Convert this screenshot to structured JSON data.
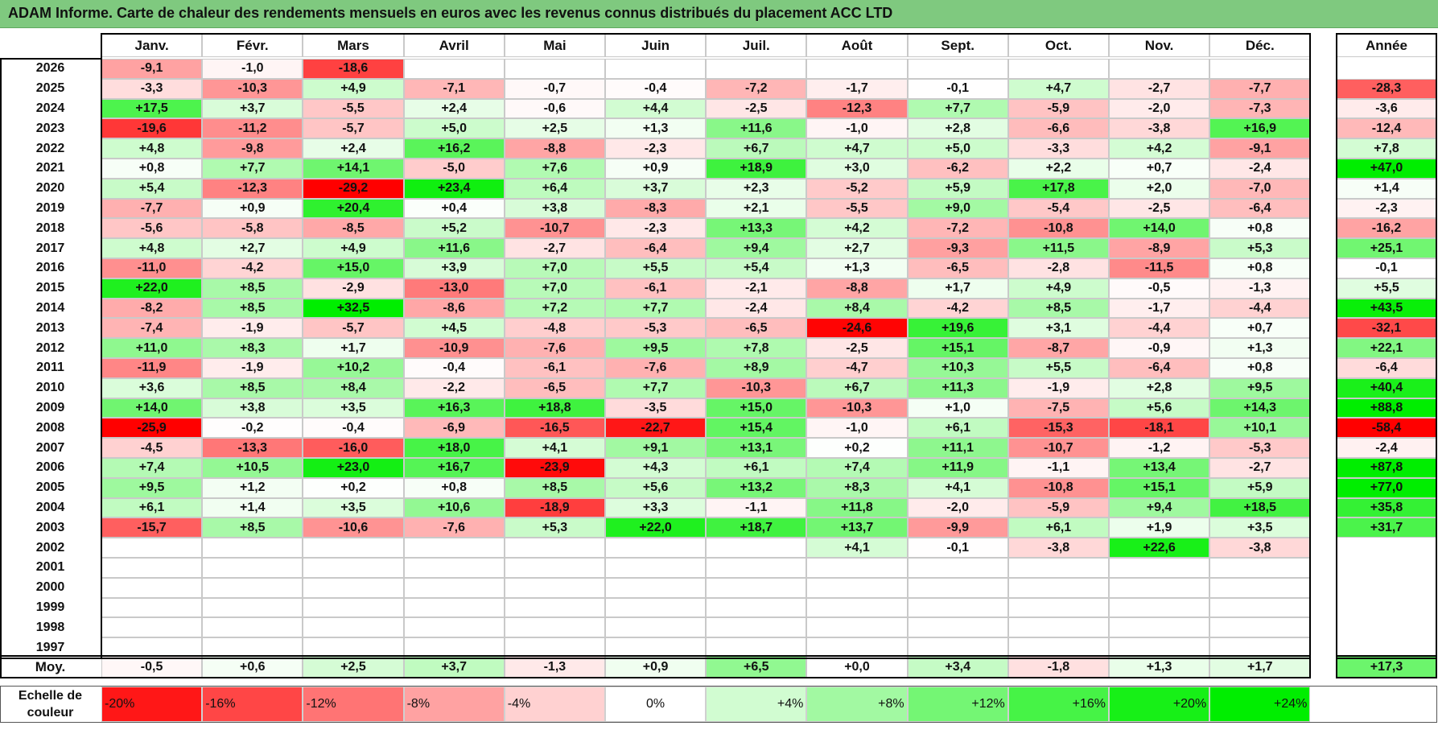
{
  "title": "ADAM Informe. Carte de chaleur des rendements mensuels en euros avec les revenus connus distribués du placement ACC LTD",
  "colors": {
    "title_bg": "#7fc97f",
    "negative_max": "#ff0000",
    "positive_max": "#00ee00",
    "neutral": "#ffffff"
  },
  "chart_data": {
    "type": "heatmap",
    "title": "ADAM Informe. Carte de chaleur des rendements mensuels en euros avec les revenus connus distribués du placement ACC LTD",
    "columns": [
      "Janv.",
      "Févr.",
      "Mars",
      "Avril",
      "Mai",
      "Juin",
      "Juil.",
      "Août",
      "Sept.",
      "Oct.",
      "Nov.",
      "Déc."
    ],
    "annual_header": "Année",
    "rows": [
      {
        "year": "2026",
        "values": [
          "-9,1",
          "-1,0",
          "-18,6",
          "",
          "",
          "",
          "",
          "",
          "",
          "",
          "",
          ""
        ],
        "annual": ""
      },
      {
        "year": "2025",
        "values": [
          "-3,3",
          "-10,3",
          "+4,9",
          "-7,1",
          "-0,7",
          "-0,4",
          "-7,2",
          "-1,7",
          "-0,1",
          "+4,7",
          "-2,7",
          "-7,7"
        ],
        "annual": "-28,3"
      },
      {
        "year": "2024",
        "values": [
          "+17,5",
          "+3,7",
          "-5,5",
          "+2,4",
          "-0,6",
          "+4,4",
          "-2,5",
          "-12,3",
          "+7,7",
          "-5,9",
          "-2,0",
          "-7,3"
        ],
        "annual": "-3,6"
      },
      {
        "year": "2023",
        "values": [
          "-19,6",
          "-11,2",
          "-5,7",
          "+5,0",
          "+2,5",
          "+1,3",
          "+11,6",
          "-1,0",
          "+2,8",
          "-6,6",
          "-3,8",
          "+16,9"
        ],
        "annual": "-12,4"
      },
      {
        "year": "2022",
        "values": [
          "+4,8",
          "-9,8",
          "+2,4",
          "+16,2",
          "-8,8",
          "-2,3",
          "+6,7",
          "+4,7",
          "+5,0",
          "-3,3",
          "+4,2",
          "-9,1"
        ],
        "annual": "+7,8"
      },
      {
        "year": "2021",
        "values": [
          "+0,8",
          "+7,7",
          "+14,1",
          "-5,0",
          "+7,6",
          "+0,9",
          "+18,9",
          "+3,0",
          "-6,2",
          "+2,2",
          "+0,7",
          "-2,4"
        ],
        "annual": "+47,0"
      },
      {
        "year": "2020",
        "values": [
          "+5,4",
          "-12,3",
          "-29,2",
          "+23,4",
          "+6,4",
          "+3,7",
          "+2,3",
          "-5,2",
          "+5,9",
          "+17,8",
          "+2,0",
          "-7,0"
        ],
        "annual": "+1,4"
      },
      {
        "year": "2019",
        "values": [
          "-7,7",
          "+0,9",
          "+20,4",
          "+0,4",
          "+3,8",
          "-8,3",
          "+2,1",
          "-5,5",
          "+9,0",
          "-5,4",
          "-2,5",
          "-6,4"
        ],
        "annual": "-2,3"
      },
      {
        "year": "2018",
        "values": [
          "-5,6",
          "-5,8",
          "-8,5",
          "+5,2",
          "-10,7",
          "-2,3",
          "+13,3",
          "+4,2",
          "-7,2",
          "-10,8",
          "+14,0",
          "+0,8"
        ],
        "annual": "-16,2"
      },
      {
        "year": "2017",
        "values": [
          "+4,8",
          "+2,7",
          "+4,9",
          "+11,6",
          "-2,7",
          "-6,4",
          "+9,4",
          "+2,7",
          "-9,3",
          "+11,5",
          "-8,9",
          "+5,3"
        ],
        "annual": "+25,1"
      },
      {
        "year": "2016",
        "values": [
          "-11,0",
          "-4,2",
          "+15,0",
          "+3,9",
          "+7,0",
          "+5,5",
          "+5,4",
          "+1,3",
          "-6,5",
          "-2,8",
          "-11,5",
          "+0,8"
        ],
        "annual": "-0,1"
      },
      {
        "year": "2015",
        "values": [
          "+22,0",
          "+8,5",
          "-2,9",
          "-13,0",
          "+7,0",
          "-6,1",
          "-2,1",
          "-8,8",
          "+1,7",
          "+4,9",
          "-0,5",
          "-1,3"
        ],
        "annual": "+5,5"
      },
      {
        "year": "2014",
        "values": [
          "-8,2",
          "+8,5",
          "+32,5",
          "-8,6",
          "+7,2",
          "+7,7",
          "-2,4",
          "+8,4",
          "-4,2",
          "+8,5",
          "-1,7",
          "-4,4"
        ],
        "annual": "+43,5"
      },
      {
        "year": "2013",
        "values": [
          "-7,4",
          "-1,9",
          "-5,7",
          "+4,5",
          "-4,8",
          "-5,3",
          "-6,5",
          "-24,6",
          "+19,6",
          "+3,1",
          "-4,4",
          "+0,7"
        ],
        "annual": "-32,1"
      },
      {
        "year": "2012",
        "values": [
          "+11,0",
          "+8,3",
          "+1,7",
          "-10,9",
          "-7,6",
          "+9,5",
          "+7,8",
          "-2,5",
          "+15,1",
          "-8,7",
          "-0,9",
          "+1,3"
        ],
        "annual": "+22,1"
      },
      {
        "year": "2011",
        "values": [
          "-11,9",
          "-1,9",
          "+10,2",
          "-0,4",
          "-6,1",
          "-7,6",
          "+8,9",
          "-4,7",
          "+10,3",
          "+5,5",
          "-6,4",
          "+0,8"
        ],
        "annual": "-6,4"
      },
      {
        "year": "2010",
        "values": [
          "+3,6",
          "+8,5",
          "+8,4",
          "-2,2",
          "-6,5",
          "+7,7",
          "-10,3",
          "+6,7",
          "+11,3",
          "-1,9",
          "+2,8",
          "+9,5"
        ],
        "annual": "+40,4"
      },
      {
        "year": "2009",
        "values": [
          "+14,0",
          "+3,8",
          "+3,5",
          "+16,3",
          "+18,8",
          "-3,5",
          "+15,0",
          "-10,3",
          "+1,0",
          "-7,5",
          "+5,6",
          "+14,3"
        ],
        "annual": "+88,8"
      },
      {
        "year": "2008",
        "values": [
          "-25,9",
          "-0,2",
          "-0,4",
          "-6,9",
          "-16,5",
          "-22,7",
          "+15,4",
          "-1,0",
          "+6,1",
          "-15,3",
          "-18,1",
          "+10,1"
        ],
        "annual": "-58,4"
      },
      {
        "year": "2007",
        "values": [
          "-4,5",
          "-13,3",
          "-16,0",
          "+18,0",
          "+4,1",
          "+9,1",
          "+13,1",
          "+0,2",
          "+11,1",
          "-10,7",
          "-1,2",
          "-5,3"
        ],
        "annual": "-2,4"
      },
      {
        "year": "2006",
        "values": [
          "+7,4",
          "+10,5",
          "+23,0",
          "+16,7",
          "-23,9",
          "+4,3",
          "+6,1",
          "+7,4",
          "+11,9",
          "-1,1",
          "+13,4",
          "-2,7"
        ],
        "annual": "+87,8"
      },
      {
        "year": "2005",
        "values": [
          "+9,5",
          "+1,2",
          "+0,2",
          "+0,8",
          "+8,5",
          "+5,6",
          "+13,2",
          "+8,3",
          "+4,1",
          "-10,8",
          "+15,1",
          "+5,9"
        ],
        "annual": "+77,0"
      },
      {
        "year": "2004",
        "values": [
          "+6,1",
          "+1,4",
          "+3,5",
          "+10,6",
          "-18,9",
          "+3,3",
          "-1,1",
          "+11,8",
          "-2,0",
          "-5,9",
          "+9,4",
          "+18,5"
        ],
        "annual": "+35,8"
      },
      {
        "year": "2003",
        "values": [
          "-15,7",
          "+8,5",
          "-10,6",
          "-7,6",
          "+5,3",
          "+22,0",
          "+18,7",
          "+13,7",
          "-9,9",
          "+6,1",
          "+1,9",
          "+3,5"
        ],
        "annual": "+31,7"
      },
      {
        "year": "2002",
        "values": [
          "",
          "",
          "",
          "",
          "",
          "",
          "",
          "+4,1",
          "-0,1",
          "-3,8",
          "+22,6",
          "-3,8"
        ],
        "annual": ""
      },
      {
        "year": "2001",
        "values": [
          "",
          "",
          "",
          "",
          "",
          "",
          "",
          "",
          "",
          "",
          "",
          ""
        ],
        "annual": ""
      },
      {
        "year": "2000",
        "values": [
          "",
          "",
          "",
          "",
          "",
          "",
          "",
          "",
          "",
          "",
          "",
          ""
        ],
        "annual": ""
      },
      {
        "year": "1999",
        "values": [
          "",
          "",
          "",
          "",
          "",
          "",
          "",
          "",
          "",
          "",
          "",
          ""
        ],
        "annual": ""
      },
      {
        "year": "1998",
        "values": [
          "",
          "",
          "",
          "",
          "",
          "",
          "",
          "",
          "",
          "",
          "",
          ""
        ],
        "annual": ""
      },
      {
        "year": "1997",
        "values": [
          "",
          "",
          "",
          "",
          "",
          "",
          "",
          "",
          "",
          "",
          "",
          ""
        ],
        "annual": ""
      }
    ],
    "average": {
      "label": "Moy.",
      "values": [
        "-0,5",
        "+0,6",
        "+2,5",
        "+3,7",
        "-1,3",
        "+0,9",
        "+6,5",
        "+0,0",
        "+3,4",
        "-1,8",
        "+1,3",
        "+1,7"
      ],
      "annual": "+17,3"
    },
    "scale": {
      "label_line1": "Echelle de",
      "label_line2": "couleur",
      "steps": [
        "-20%",
        "-16%",
        "-12%",
        "-8%",
        "-4%",
        "0%",
        "+4%",
        "+8%",
        "+12%",
        "+16%",
        "+20%",
        "+24%"
      ]
    }
  }
}
